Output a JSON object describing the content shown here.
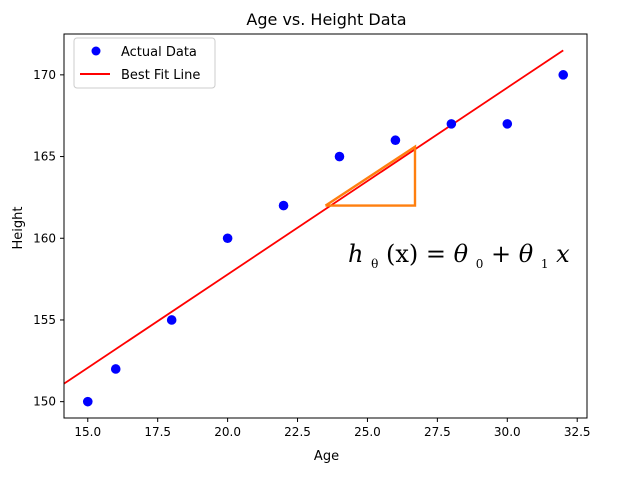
{
  "chart_data": {
    "type": "scatter",
    "title": "Age vs. Height Data",
    "xlabel": "Age",
    "ylabel": "Height",
    "xlim": [
      14.15,
      32.85
    ],
    "ylim": [
      149.0,
      172.5
    ],
    "xticks": [
      15.0,
      17.5,
      20.0,
      22.5,
      25.0,
      27.5,
      30.0,
      32.5
    ],
    "xtick_labels": [
      "15.0",
      "17.5",
      "20.0",
      "22.5",
      "25.0",
      "27.5",
      "30.0",
      "32.5"
    ],
    "yticks": [
      150,
      155,
      160,
      165,
      170
    ],
    "ytick_labels": [
      "150",
      "155",
      "160",
      "165",
      "170"
    ],
    "grid": false,
    "legend_position": "top-left",
    "series": [
      {
        "name": "Actual Data",
        "kind": "scatter",
        "color": "#0000ff",
        "x": [
          15,
          16,
          18,
          20,
          22,
          24,
          26,
          28,
          30,
          32
        ],
        "y": [
          150,
          152,
          155,
          160,
          162,
          165,
          166,
          167,
          167,
          170
        ]
      },
      {
        "name": "Best Fit Line",
        "kind": "line",
        "color": "#ff0000",
        "x": [
          14.15,
          32.0
        ],
        "y": [
          151.1,
          171.5
        ]
      }
    ],
    "annotations": {
      "slope_triangle": {
        "color": "#ff7f0e",
        "x": [
          23.5,
          26.7,
          26.7,
          23.5
        ],
        "y": [
          162.0,
          165.6,
          162.0,
          162.0
        ]
      },
      "formula": {
        "h": "h",
        "theta": "θ",
        "open": "(x) = ",
        "theta0": "θ",
        "sub0": "0",
        "plus": " + ",
        "theta1": "θ",
        "sub1": "1",
        "x": "x"
      }
    }
  }
}
